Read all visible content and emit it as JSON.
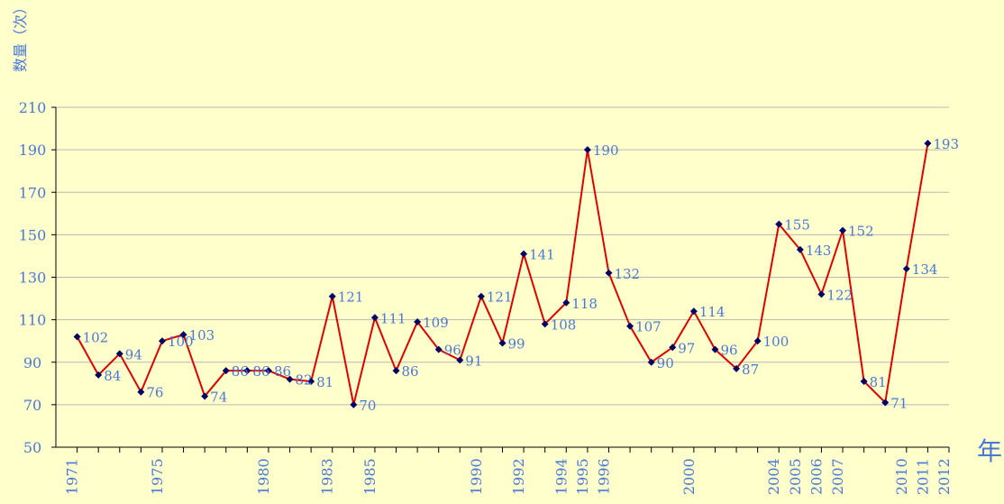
{
  "chart_data": {
    "type": "line",
    "title": "",
    "xlabel": "年",
    "ylabel": "数量（次）",
    "ylim": [
      50,
      210
    ],
    "yticks": [
      50,
      70,
      90,
      110,
      130,
      150,
      170,
      190,
      210
    ],
    "grid": true,
    "x_tick_labels_visible": [
      "1971",
      "1975",
      "1980",
      "1983",
      "1985",
      "1990",
      "1992",
      "1994",
      "1995",
      "1996",
      "2000",
      "2004",
      "2005",
      "2006",
      "2007",
      "2010",
      "2011",
      "2012"
    ],
    "colors": {
      "line": "#e30000",
      "marker": "#000066",
      "grid": "#b7b7b7",
      "text": "#4a78d8",
      "axis": "#000000",
      "background": "#ffffcc"
    },
    "x": [
      1971,
      1972,
      1973,
      1974,
      1975,
      1976,
      1977,
      1978,
      1979,
      1980,
      1981,
      1982,
      1983,
      1984,
      1985,
      1986,
      1987,
      1988,
      1989,
      1990,
      1991,
      1992,
      1993,
      1994,
      1995,
      1996,
      1997,
      1998,
      1999,
      2000,
      2001,
      2002,
      2003,
      2004,
      2005,
      2006,
      2007,
      2008,
      2009,
      2010,
      2011
    ],
    "values": [
      102,
      84,
      94,
      76,
      100,
      103,
      74,
      86,
      86,
      86,
      82,
      81,
      121,
      70,
      111,
      86,
      109,
      96,
      91,
      121,
      99,
      141,
      108,
      118,
      190,
      132,
      107,
      90,
      97,
      114,
      96,
      87,
      100,
      155,
      143,
      122,
      152,
      81,
      71,
      134,
      193
    ],
    "value_labels": [
      "102",
      "84",
      "94",
      "76",
      "100",
      "103",
      "74",
      "86",
      "86",
      "86",
      "82",
      "81",
      "121",
      "70",
      "111",
      "86",
      "109",
      "96",
      "91",
      "121",
      "99",
      "141",
      "108",
      "118",
      "190",
      "132",
      "107",
      "90",
      "97",
      "114",
      "96",
      "87",
      "100",
      "155",
      "143",
      "122",
      "152",
      "81",
      "71",
      "134",
      "193"
    ]
  }
}
